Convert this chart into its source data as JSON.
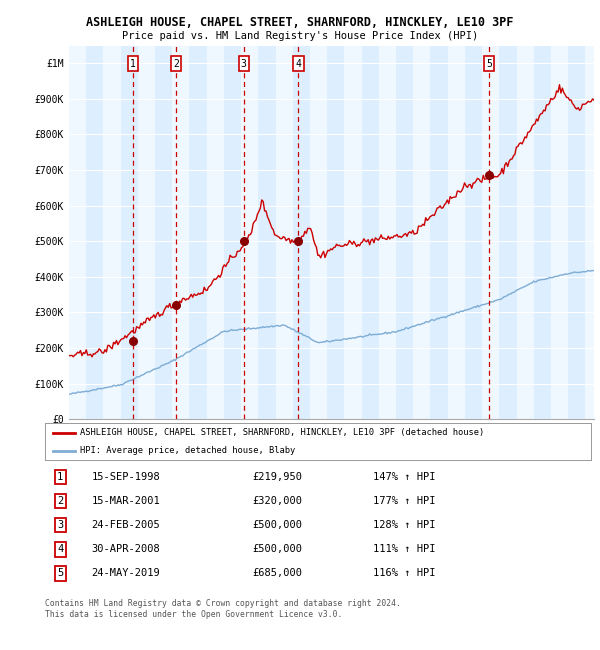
{
  "title1": "ASHLEIGH HOUSE, CHAPEL STREET, SHARNFORD, HINCKLEY, LE10 3PF",
  "title2": "Price paid vs. HM Land Registry's House Price Index (HPI)",
  "ylim": [
    0,
    1050000
  ],
  "xlim_start": 1995.0,
  "xlim_end": 2025.5,
  "sale_dates": [
    1998.71,
    2001.21,
    2005.15,
    2008.33,
    2019.39
  ],
  "sale_prices": [
    219950,
    320000,
    500000,
    500000,
    685000
  ],
  "sale_labels": [
    "1",
    "2",
    "3",
    "4",
    "5"
  ],
  "sale_info": [
    {
      "num": "1",
      "date": "15-SEP-1998",
      "price": "£219,950",
      "hpi": "147% ↑ HPI"
    },
    {
      "num": "2",
      "date": "15-MAR-2001",
      "price": "£320,000",
      "hpi": "177% ↑ HPI"
    },
    {
      "num": "3",
      "date": "24-FEB-2005",
      "price": "£500,000",
      "hpi": "128% ↑ HPI"
    },
    {
      "num": "4",
      "date": "30-APR-2008",
      "price": "£500,000",
      "hpi": "111% ↑ HPI"
    },
    {
      "num": "5",
      "date": "24-MAY-2019",
      "price": "£685,000",
      "hpi": "116% ↑ HPI"
    }
  ],
  "legend_line1": "ASHLEIGH HOUSE, CHAPEL STREET, SHARNFORD, HINCKLEY, LE10 3PF (detached house)",
  "legend_line2": "HPI: Average price, detached house, Blaby",
  "footer": "Contains HM Land Registry data © Crown copyright and database right 2024.\nThis data is licensed under the Open Government Licence v3.0.",
  "red_color": "#cc0000",
  "blue_color": "#7eadd4",
  "bg_color": "#ddeeff",
  "grid_color": "#ffffff",
  "vline_color": "#cc0000",
  "label_box_color": "#cc0000",
  "ytick_labels": [
    "£0",
    "£100K",
    "£200K",
    "£300K",
    "£400K",
    "£500K",
    "£600K",
    "£700K",
    "£800K",
    "£900K",
    "£1M"
  ],
  "ytick_values": [
    0,
    100000,
    200000,
    300000,
    400000,
    500000,
    600000,
    700000,
    800000,
    900000,
    1000000
  ],
  "xtick_start": 1995,
  "xtick_end": 2026
}
